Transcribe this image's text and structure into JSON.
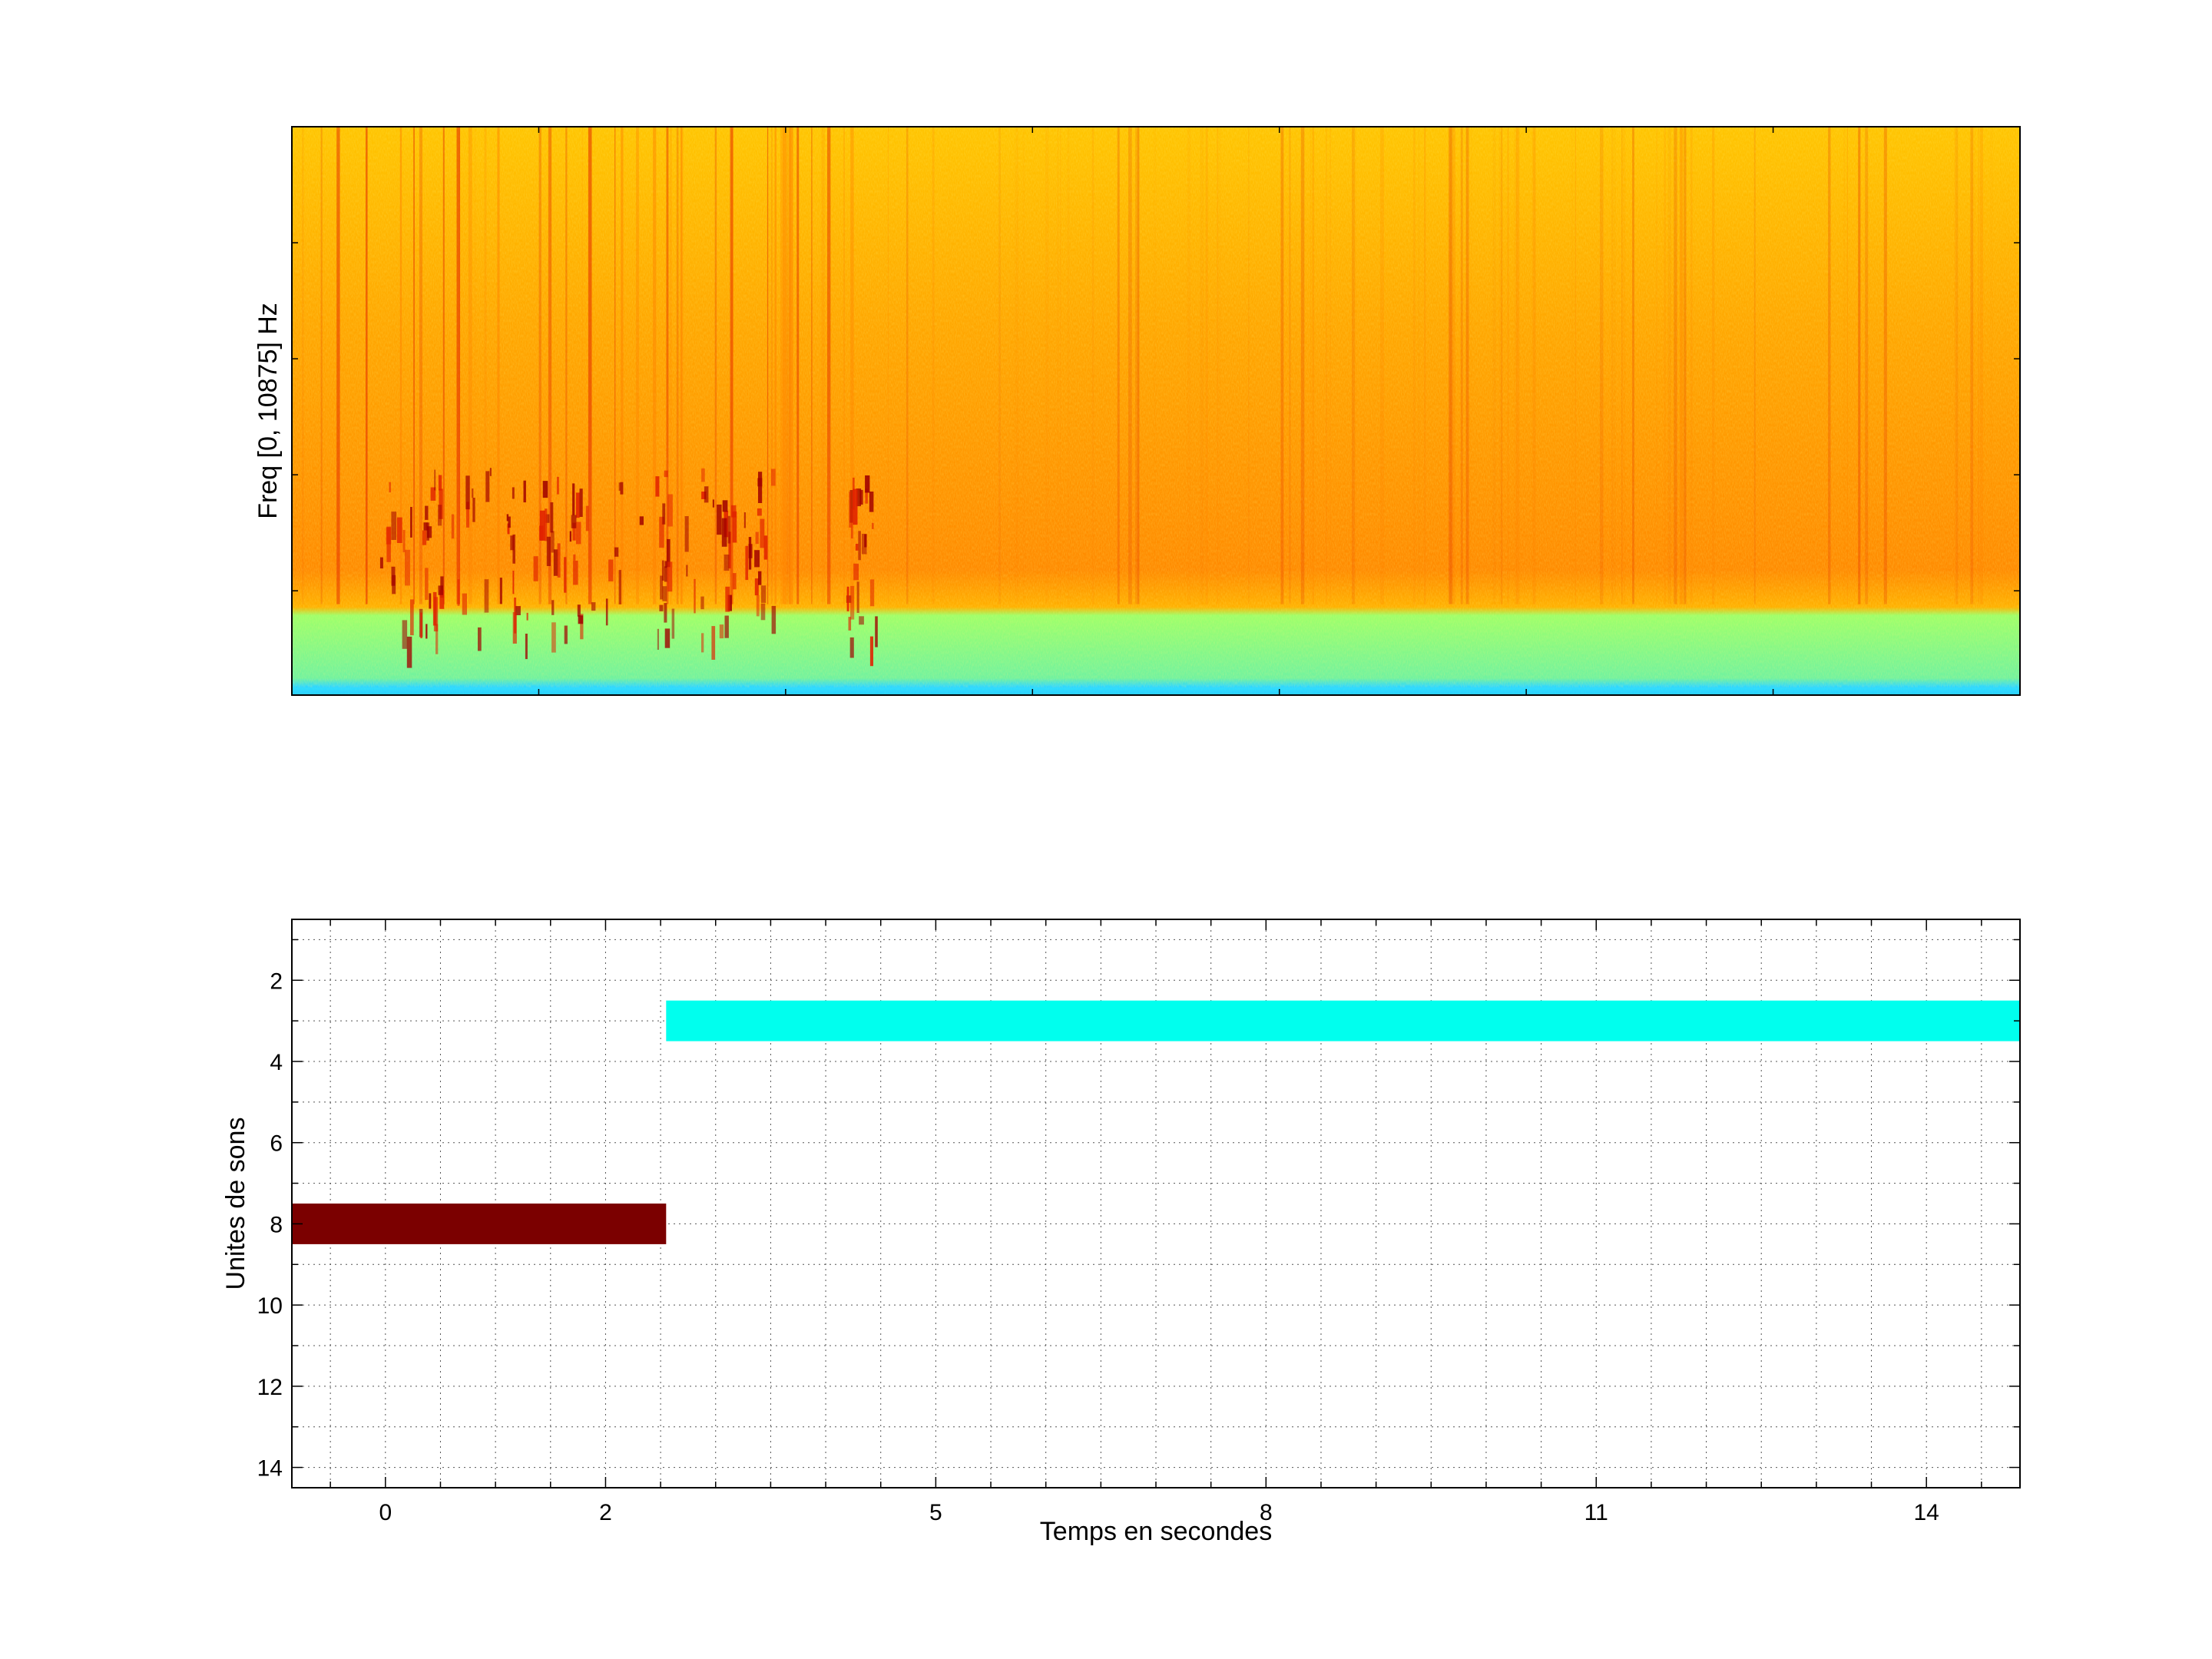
{
  "chart_data": [
    {
      "type": "heatmap",
      "kind": "spectrogram",
      "title": "",
      "xlabel": "",
      "ylabel": "Freq [0, 10875] Hz",
      "ylim": [
        0,
        10875
      ],
      "colormap": "jet",
      "regions": [
        {
          "from": 0.0,
          "to": 0.16,
          "color": "#7ff07f",
          "note": "low band"
        },
        {
          "from": 0.16,
          "to": 1.0,
          "color": "#ffb000",
          "note": "upper band"
        }
      ],
      "colors": {
        "dark_red": "#a00000",
        "red": "#e02000",
        "orange": "#ff8000",
        "yellow": "#ffe000",
        "green_yellow": "#b0ff50",
        "cyan": "#30e0ff",
        "blue": "#0080ff"
      }
    },
    {
      "type": "bar",
      "orientation": "horizontal-gantt",
      "title": "",
      "xlabel": "Temps en secondes",
      "ylabel": "Unites de sons",
      "xlim": [
        -0.85,
        14.85
      ],
      "ylim": [
        0.5,
        14.5
      ],
      "y_reversed": true,
      "xticks": [
        0,
        2,
        5,
        8,
        11,
        14
      ],
      "xtick_labels": [
        "0",
        "2",
        "5",
        "8",
        "11",
        "14"
      ],
      "yticks": [
        2,
        4,
        6,
        8,
        10,
        12,
        14
      ],
      "grid": true,
      "segments": [
        {
          "unit": 8,
          "start": -0.85,
          "end": 2.55,
          "color": "#7b0000"
        },
        {
          "unit": 3,
          "start": 2.55,
          "end": 14.85,
          "color": "#00ffee"
        }
      ]
    }
  ]
}
